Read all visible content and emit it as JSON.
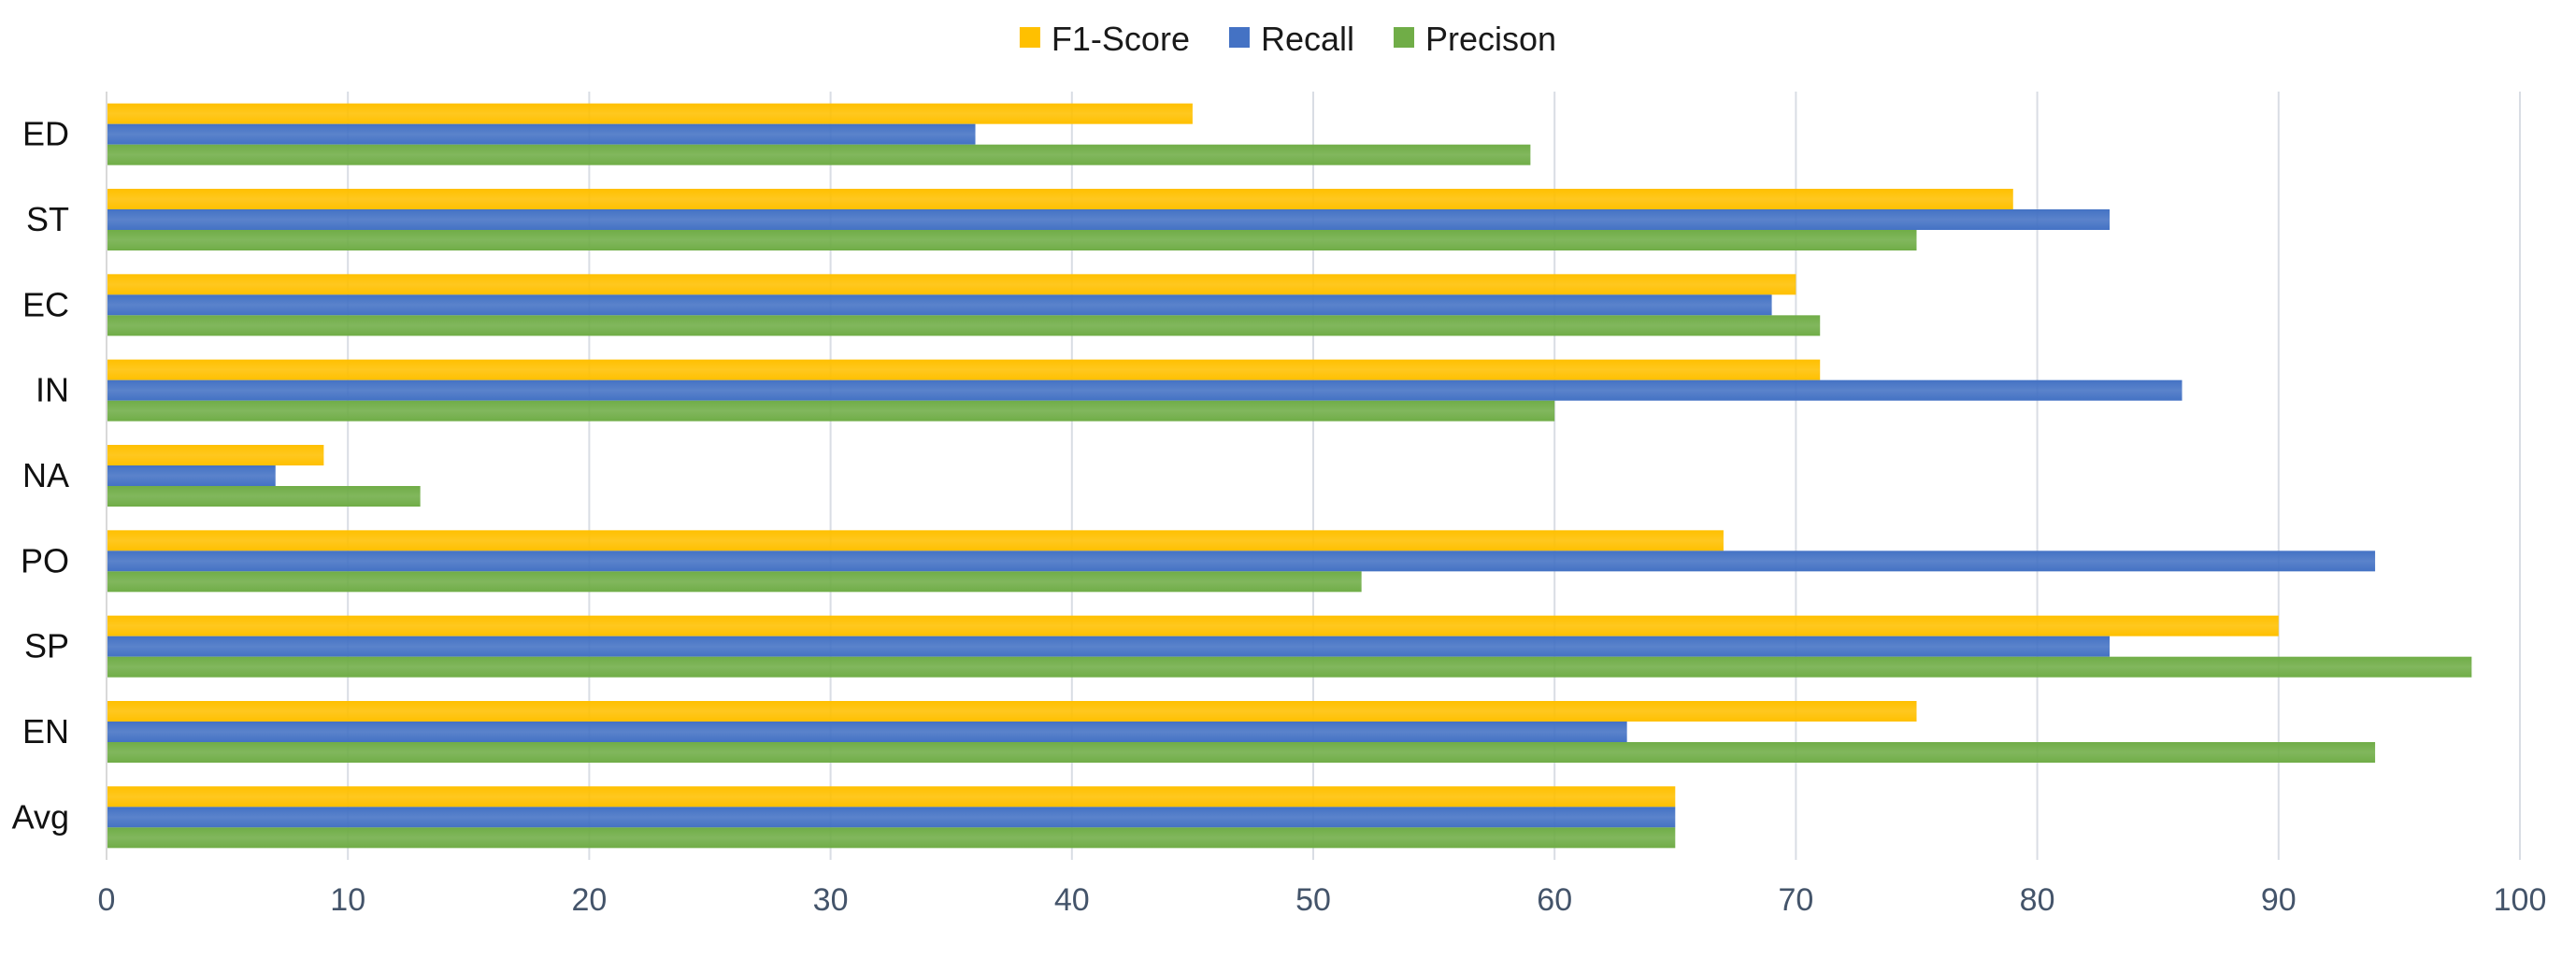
{
  "chart_data": {
    "type": "bar",
    "orientation": "horizontal",
    "categories": [
      "ED",
      "ST",
      "EC",
      "IN",
      "NA",
      "PO",
      "SP",
      "EN",
      "Avg"
    ],
    "series": [
      {
        "name": "F1-Score",
        "color": "#FFC000",
        "values": [
          45,
          79,
          70,
          71,
          9,
          67,
          90,
          75,
          65
        ]
      },
      {
        "name": "Recall",
        "color": "#4472C4",
        "values": [
          36,
          83,
          69,
          86,
          7,
          94,
          83,
          63,
          65
        ]
      },
      {
        "name": "Precison",
        "color": "#70AD47",
        "values": [
          59,
          75,
          71,
          60,
          13,
          52,
          98,
          94,
          65
        ]
      }
    ],
    "xlim": [
      0,
      100
    ],
    "xticks": [
      0,
      10,
      20,
      30,
      40,
      50,
      60,
      70,
      80,
      90,
      100
    ],
    "grid": "vertical",
    "legend_position": "top-center",
    "title": "",
    "xlabel": "",
    "ylabel": ""
  }
}
